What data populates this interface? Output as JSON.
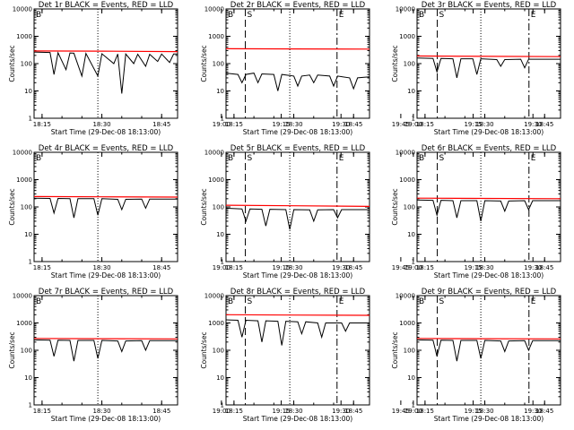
{
  "chart_data": {
    "type": "line",
    "layout": "3x3 grid of panels",
    "yscale": "log",
    "ylim": [
      1,
      10000
    ],
    "y_ticks": [
      "1",
      "10",
      "100",
      "1000",
      "10000"
    ],
    "ylabel": "Counts/sec",
    "xlim": [
      "18:13",
      "18:49"
    ],
    "x_ticks": [
      "18:15",
      "18:30",
      "18:45",
      "19:00",
      "19:15",
      "19:30",
      "19:45"
    ],
    "xlabel": "Start Time (29-Dec-08 18:13:00)",
    "colors": {
      "events": "#000000",
      "lld": "#ff0000",
      "marker_lines": "#000000"
    },
    "marker_labels": {
      "left_edge": "B",
      "start": "S",
      "end": "E"
    },
    "markers": {
      "dotted": "18:29",
      "start": "19:06",
      "end": "19:29"
    },
    "panels": [
      {
        "title": "Det 1r BLACK = Events, RED = LLD",
        "events": [
          [
            "18:13",
            265
          ],
          [
            "18:17",
            255
          ],
          [
            "18:18",
            40
          ],
          [
            "18:19",
            250
          ],
          [
            "18:21",
            60
          ],
          [
            "18:22",
            245
          ],
          [
            "18:23",
            240
          ],
          [
            "18:25",
            35
          ],
          [
            "18:26",
            235
          ],
          [
            "18:29",
            35
          ],
          [
            "18:30",
            230
          ],
          [
            "18:33",
            100
          ],
          [
            "18:34",
            225
          ],
          [
            "18:35",
            8
          ],
          [
            "18:36",
            225
          ],
          [
            "18:38",
            100
          ],
          [
            "18:39",
            220
          ],
          [
            "18:41",
            80
          ],
          [
            "18:42",
            220
          ],
          [
            "18:44",
            120
          ],
          [
            "18:45",
            225
          ],
          [
            "18:47",
            110
          ],
          [
            "18:48",
            225
          ],
          [
            "18:49",
            225
          ]
        ],
        "lld": [
          [
            "18:13",
            290
          ],
          [
            "18:30",
            285
          ],
          [
            "18:49",
            275
          ]
        ]
      },
      {
        "title": "Det 2r BLACK = Events, RED = LLD",
        "events": [
          [
            "18:13",
            45
          ],
          [
            "18:16",
            40
          ],
          [
            "18:17",
            20
          ],
          [
            "18:18",
            40
          ],
          [
            "18:20",
            45
          ],
          [
            "18:21",
            20
          ],
          [
            "18:22",
            42
          ],
          [
            "18:25",
            40
          ],
          [
            "18:26",
            10
          ],
          [
            "18:27",
            40
          ],
          [
            "18:30",
            35
          ],
          [
            "18:31",
            15
          ],
          [
            "18:32",
            35
          ],
          [
            "18:34",
            38
          ],
          [
            "18:35",
            20
          ],
          [
            "18:36",
            38
          ],
          [
            "18:39",
            35
          ],
          [
            "18:40",
            15
          ],
          [
            "18:41",
            35
          ],
          [
            "18:44",
            30
          ],
          [
            "18:45",
            12
          ],
          [
            "18:46",
            30
          ],
          [
            "18:49",
            33
          ]
        ],
        "lld": [
          [
            "18:13",
            350
          ],
          [
            "18:30",
            345
          ],
          [
            "18:49",
            340
          ]
        ]
      },
      {
        "title": "Det 3r BLACK = Events, RED = LLD",
        "events": [
          [
            "18:13",
            160
          ],
          [
            "18:17",
            155
          ],
          [
            "18:18",
            50
          ],
          [
            "18:19",
            155
          ],
          [
            "18:22",
            150
          ],
          [
            "18:23",
            30
          ],
          [
            "18:24",
            150
          ],
          [
            "18:27",
            150
          ],
          [
            "18:28",
            40
          ],
          [
            "18:29",
            150
          ],
          [
            "18:33",
            140
          ],
          [
            "18:34",
            80
          ],
          [
            "18:35",
            140
          ],
          [
            "18:39",
            145
          ],
          [
            "18:40",
            70
          ],
          [
            "18:41",
            145
          ],
          [
            "18:49",
            145
          ]
        ],
        "lld": [
          [
            "18:13",
            190
          ],
          [
            "18:30",
            185
          ],
          [
            "18:49",
            180
          ]
        ]
      },
      {
        "title": "Det 4r BLACK = Events, RED = LLD",
        "events": [
          [
            "18:13",
            210
          ],
          [
            "18:17",
            205
          ],
          [
            "18:18",
            60
          ],
          [
            "18:19",
            205
          ],
          [
            "18:22",
            200
          ],
          [
            "18:23",
            40
          ],
          [
            "18:24",
            200
          ],
          [
            "18:28",
            200
          ],
          [
            "18:29",
            50
          ],
          [
            "18:30",
            200
          ],
          [
            "18:34",
            190
          ],
          [
            "18:35",
            80
          ],
          [
            "18:36",
            190
          ],
          [
            "18:40",
            195
          ],
          [
            "18:41",
            90
          ],
          [
            "18:42",
            195
          ],
          [
            "18:49",
            195
          ]
        ],
        "lld": [
          [
            "18:13",
            240
          ],
          [
            "18:30",
            235
          ],
          [
            "18:49",
            230
          ]
        ]
      },
      {
        "title": "Det 5r BLACK = Events, RED = LLD",
        "events": [
          [
            "18:13",
            90
          ],
          [
            "18:17",
            85
          ],
          [
            "18:18",
            30
          ],
          [
            "18:19",
            85
          ],
          [
            "18:22",
            82
          ],
          [
            "18:23",
            20
          ],
          [
            "18:24",
            82
          ],
          [
            "18:28",
            80
          ],
          [
            "18:29",
            15
          ],
          [
            "18:30",
            80
          ],
          [
            "18:34",
            78
          ],
          [
            "18:35",
            30
          ],
          [
            "18:36",
            78
          ],
          [
            "18:40",
            80
          ],
          [
            "18:41",
            40
          ],
          [
            "18:42",
            80
          ],
          [
            "18:49",
            80
          ]
        ],
        "lld": [
          [
            "18:13",
            115
          ],
          [
            "18:30",
            110
          ],
          [
            "18:49",
            105
          ]
        ]
      },
      {
        "title": "Det 6r BLACK = Events, RED = LLD",
        "events": [
          [
            "18:13",
            180
          ],
          [
            "18:17",
            175
          ],
          [
            "18:18",
            50
          ],
          [
            "18:19",
            175
          ],
          [
            "18:22",
            170
          ],
          [
            "18:23",
            40
          ],
          [
            "18:24",
            170
          ],
          [
            "18:28",
            170
          ],
          [
            "18:29",
            30
          ],
          [
            "18:30",
            170
          ],
          [
            "18:34",
            165
          ],
          [
            "18:35",
            70
          ],
          [
            "18:36",
            165
          ],
          [
            "18:40",
            170
          ],
          [
            "18:41",
            80
          ],
          [
            "18:42",
            170
          ],
          [
            "18:49",
            170
          ]
        ],
        "lld": [
          [
            "18:13",
            210
          ],
          [
            "18:30",
            205
          ],
          [
            "18:49",
            200
          ]
        ]
      },
      {
        "title": "Det 7r BLACK = Events, RED = LLD",
        "events": [
          [
            "18:13",
            240
          ],
          [
            "18:17",
            235
          ],
          [
            "18:18",
            60
          ],
          [
            "18:19",
            235
          ],
          [
            "18:22",
            230
          ],
          [
            "18:23",
            40
          ],
          [
            "18:24",
            230
          ],
          [
            "18:28",
            230
          ],
          [
            "18:29",
            50
          ],
          [
            "18:30",
            230
          ],
          [
            "18:34",
            220
          ],
          [
            "18:35",
            90
          ],
          [
            "18:36",
            220
          ],
          [
            "18:40",
            225
          ],
          [
            "18:41",
            100
          ],
          [
            "18:42",
            225
          ],
          [
            "18:49",
            225
          ]
        ],
        "lld": [
          [
            "18:13",
            270
          ],
          [
            "18:30",
            265
          ],
          [
            "18:49",
            260
          ]
        ]
      },
      {
        "title": "Det 8r BLACK = Events, RED = LLD",
        "events": [
          [
            "18:13",
            1300
          ],
          [
            "18:16",
            1250
          ],
          [
            "18:17",
            300
          ],
          [
            "18:18",
            1250
          ],
          [
            "18:21",
            1200
          ],
          [
            "18:22",
            200
          ],
          [
            "18:23",
            1200
          ],
          [
            "18:26",
            1150
          ],
          [
            "18:27",
            150
          ],
          [
            "18:28",
            1150
          ],
          [
            "18:31",
            1100
          ],
          [
            "18:32",
            400
          ],
          [
            "18:33",
            1100
          ],
          [
            "18:36",
            1000
          ],
          [
            "18:37",
            300
          ],
          [
            "18:38",
            1000
          ],
          [
            "18:42",
            1000
          ],
          [
            "18:43",
            500
          ],
          [
            "18:44",
            1000
          ],
          [
            "18:49",
            1000
          ]
        ],
        "lld": [
          [
            "18:13",
            2000
          ],
          [
            "18:30",
            1950
          ],
          [
            "18:49",
            1900
          ]
        ]
      },
      {
        "title": "Det 9r BLACK = Events, RED = LLD",
        "events": [
          [
            "18:13",
            240
          ],
          [
            "18:17",
            235
          ],
          [
            "18:18",
            60
          ],
          [
            "18:19",
            235
          ],
          [
            "18:22",
            230
          ],
          [
            "18:23",
            40
          ],
          [
            "18:24",
            230
          ],
          [
            "18:28",
            230
          ],
          [
            "18:29",
            50
          ],
          [
            "18:30",
            230
          ],
          [
            "18:34",
            220
          ],
          [
            "18:35",
            90
          ],
          [
            "18:36",
            220
          ],
          [
            "18:40",
            225
          ],
          [
            "18:41",
            100
          ],
          [
            "18:42",
            225
          ],
          [
            "18:49",
            225
          ]
        ],
        "lld": [
          [
            "18:13",
            270
          ],
          [
            "18:30",
            265
          ],
          [
            "18:49",
            260
          ]
        ]
      }
    ]
  }
}
